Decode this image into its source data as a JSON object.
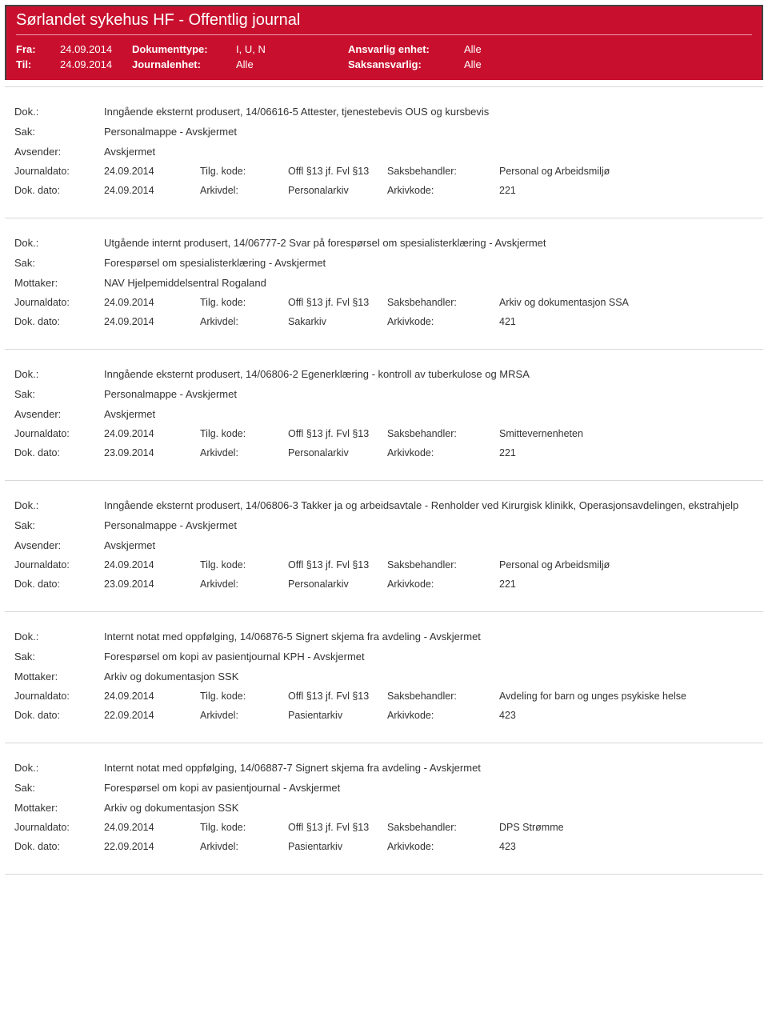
{
  "header": {
    "title": "Sørlandet sykehus HF - Offentlig journal",
    "fra_label": "Fra:",
    "fra_value": "24.09.2014",
    "til_label": "Til:",
    "til_value": "24.09.2014",
    "doktype_label": "Dokumenttype:",
    "doktype_value": "I, U, N",
    "journalenhet_label": "Journalenhet:",
    "journalenhet_value": "Alle",
    "ansvarlig_label": "Ansvarlig enhet:",
    "ansvarlig_value": "Alle",
    "saksansvarlig_label": "Saksansvarlig:",
    "saksansvarlig_value": "Alle"
  },
  "labels": {
    "dok": "Dok.:",
    "sak": "Sak:",
    "avsender": "Avsender:",
    "mottaker": "Mottaker:",
    "journaldato": "Journaldato:",
    "dokdato": "Dok. dato:",
    "tilgkode": "Tilg. kode:",
    "arkivdel": "Arkivdel:",
    "saksbehandler": "Saksbehandler:",
    "arkivkode": "Arkivkode:"
  },
  "entries": [
    {
      "dok": "Inngående eksternt produsert, 14/06616-5 Attester, tjenestebevis OUS og kursbevis",
      "sak": "Personalmappe - Avskjermet",
      "party_label": "Avsender:",
      "party": "Avskjermet",
      "journaldato": "24.09.2014",
      "dokdato": "24.09.2014",
      "tilgkode": "Offl §13 jf. Fvl §13",
      "arkivdel": "Personalarkiv",
      "saksbehandler": "Personal og Arbeidsmiljø",
      "arkivkode": "221"
    },
    {
      "dok": "Utgående internt produsert, 14/06777-2 Svar på forespørsel om spesialisterklæring - Avskjermet",
      "sak": "Forespørsel om spesialisterklæring - Avskjermet",
      "party_label": "Mottaker:",
      "party": "NAV Hjelpemiddelsentral Rogaland",
      "journaldato": "24.09.2014",
      "dokdato": "24.09.2014",
      "tilgkode": "Offl §13 jf. Fvl §13",
      "arkivdel": "Sakarkiv",
      "saksbehandler": "Arkiv og dokumentasjon SSA",
      "arkivkode": "421"
    },
    {
      "dok": "Inngående eksternt produsert, 14/06806-2 Egenerklæring - kontroll av tuberkulose og MRSA",
      "sak": "Personalmappe - Avskjermet",
      "party_label": "Avsender:",
      "party": "Avskjermet",
      "journaldato": "24.09.2014",
      "dokdato": "23.09.2014",
      "tilgkode": "Offl §13 jf. Fvl §13",
      "arkivdel": "Personalarkiv",
      "saksbehandler": "Smittevernenheten",
      "arkivkode": "221"
    },
    {
      "dok": "Inngående eksternt produsert, 14/06806-3 Takker ja og arbeidsavtale - Renholder ved Kirurgisk klinikk, Operasjonsavdelingen, ekstrahjelp",
      "sak": "Personalmappe - Avskjermet",
      "party_label": "Avsender:",
      "party": "Avskjermet",
      "journaldato": "24.09.2014",
      "dokdato": "23.09.2014",
      "tilgkode": "Offl §13 jf. Fvl §13",
      "arkivdel": "Personalarkiv",
      "saksbehandler": "Personal og Arbeidsmiljø",
      "arkivkode": "221"
    },
    {
      "dok": "Internt notat med oppfølging, 14/06876-5 Signert skjema fra avdeling - Avskjermet",
      "sak": "Forespørsel om kopi av pasientjournal KPH - Avskjermet",
      "party_label": "Mottaker:",
      "party": "Arkiv og dokumentasjon SSK",
      "journaldato": "24.09.2014",
      "dokdato": "22.09.2014",
      "tilgkode": "Offl §13 jf. Fvl §13",
      "arkivdel": "Pasientarkiv",
      "saksbehandler": "Avdeling for barn og unges psykiske helse",
      "arkivkode": "423"
    },
    {
      "dok": "Internt notat med oppfølging, 14/06887-7 Signert skjema fra avdeling - Avskjermet",
      "sak": "Forespørsel om kopi av pasientjournal - Avskjermet",
      "party_label": "Mottaker:",
      "party": "Arkiv og dokumentasjon SSK",
      "journaldato": "24.09.2014",
      "dokdato": "22.09.2014",
      "tilgkode": "Offl §13 jf. Fvl §13",
      "arkivdel": "Pasientarkiv",
      "saksbehandler": "DPS Strømme",
      "arkivkode": "423"
    }
  ]
}
